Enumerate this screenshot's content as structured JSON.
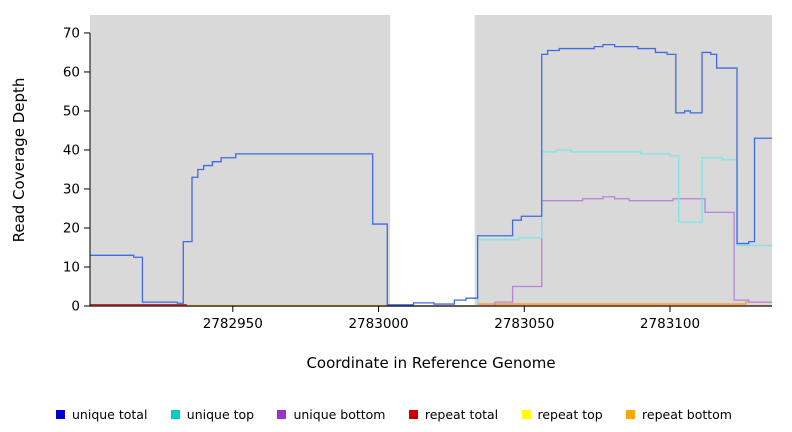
{
  "chart_data": {
    "type": "line",
    "title": "",
    "x_label": "Coordinate in Reference Genome",
    "y_label": "Read Coverage Depth",
    "x_range": [
      2782901,
      2783135
    ],
    "y_range": [
      0,
      74.6
    ],
    "x_ticks": [
      2782950,
      2783000,
      2783050,
      2783100
    ],
    "y_ticks": [
      0,
      10,
      20,
      30,
      40,
      50,
      60,
      70
    ],
    "grid": false,
    "legend_position": "bottom",
    "shaded_regions": [
      {
        "x0": 2782901,
        "x1": 2783004,
        "color": "#D9D9D9"
      },
      {
        "x0": 2783033,
        "x1": 2783135,
        "color": "#D9D9D9"
      }
    ],
    "series": [
      {
        "name": "unique total",
        "line_color": "#4169E1",
        "legend_color": "#0000CC",
        "points": [
          [
            2782901,
            13
          ],
          [
            2782916,
            13
          ],
          [
            2782916,
            12.5
          ],
          [
            2782919,
            12.5
          ],
          [
            2782919,
            1
          ],
          [
            2782931,
            1
          ],
          [
            2782931,
            0.7
          ],
          [
            2782933,
            0.7
          ],
          [
            2782933,
            16.5
          ],
          [
            2782936,
            16.5
          ],
          [
            2782936,
            33
          ],
          [
            2782938,
            33
          ],
          [
            2782938,
            35
          ],
          [
            2782940,
            35
          ],
          [
            2782940,
            36
          ],
          [
            2782943,
            36
          ],
          [
            2782943,
            37
          ],
          [
            2782946,
            37
          ],
          [
            2782946,
            38
          ],
          [
            2782951,
            38
          ],
          [
            2782951,
            39
          ],
          [
            2782998,
            39
          ],
          [
            2782998,
            21
          ],
          [
            2783003,
            21
          ],
          [
            2783003,
            0.3
          ],
          [
            2783012,
            0.3
          ],
          [
            2783012,
            0.8
          ],
          [
            2783019,
            0.8
          ],
          [
            2783019,
            0.5
          ],
          [
            2783026,
            0.5
          ],
          [
            2783026,
            1.5
          ],
          [
            2783030,
            1.5
          ],
          [
            2783030,
            2
          ],
          [
            2783034,
            2
          ],
          [
            2783034,
            18
          ],
          [
            2783046,
            18
          ],
          [
            2783046,
            22
          ],
          [
            2783049,
            22
          ],
          [
            2783049,
            23
          ],
          [
            2783056,
            23
          ],
          [
            2783056,
            64.5
          ],
          [
            2783058,
            64.5
          ],
          [
            2783058,
            65.5
          ],
          [
            2783062,
            65.5
          ],
          [
            2783062,
            66
          ],
          [
            2783074,
            66
          ],
          [
            2783074,
            66.5
          ],
          [
            2783077,
            66.5
          ],
          [
            2783077,
            67
          ],
          [
            2783081,
            67
          ],
          [
            2783081,
            66.5
          ],
          [
            2783089,
            66.5
          ],
          [
            2783089,
            66
          ],
          [
            2783095,
            66
          ],
          [
            2783095,
            65
          ],
          [
            2783099,
            65
          ],
          [
            2783099,
            64.5
          ],
          [
            2783102,
            64.5
          ],
          [
            2783102,
            49.5
          ],
          [
            2783105,
            49.5
          ],
          [
            2783105,
            50
          ],
          [
            2783107,
            50
          ],
          [
            2783107,
            49.5
          ],
          [
            2783111,
            49.5
          ],
          [
            2783111,
            65
          ],
          [
            2783114,
            65
          ],
          [
            2783114,
            64.5
          ],
          [
            2783116,
            64.5
          ],
          [
            2783116,
            61
          ],
          [
            2783123,
            61
          ],
          [
            2783123,
            16
          ],
          [
            2783127,
            16
          ],
          [
            2783127,
            16.5
          ],
          [
            2783129,
            16.5
          ],
          [
            2783129,
            43
          ],
          [
            2783135,
            43
          ]
        ]
      },
      {
        "name": "unique top",
        "line_color": "#7FE6E6",
        "legend_color": "#00CCCC",
        "points": [
          [
            2782901,
            0
          ],
          [
            2783034,
            0
          ],
          [
            2783034,
            17
          ],
          [
            2783048,
            17
          ],
          [
            2783048,
            17.5
          ],
          [
            2783056,
            17.5
          ],
          [
            2783056,
            39.5
          ],
          [
            2783061,
            39.5
          ],
          [
            2783061,
            40
          ],
          [
            2783066,
            40
          ],
          [
            2783066,
            39.5
          ],
          [
            2783090,
            39.5
          ],
          [
            2783090,
            39
          ],
          [
            2783100,
            39
          ],
          [
            2783100,
            38.5
          ],
          [
            2783103,
            38.5
          ],
          [
            2783103,
            21.5
          ],
          [
            2783111,
            21.5
          ],
          [
            2783111,
            38
          ],
          [
            2783118,
            38
          ],
          [
            2783118,
            37.5
          ],
          [
            2783123,
            37.5
          ],
          [
            2783123,
            15.5
          ],
          [
            2783135,
            15.5
          ]
        ]
      },
      {
        "name": "unique bottom",
        "line_color": "#B983DD",
        "legend_color": "#9933CC",
        "points": [
          [
            2782901,
            0
          ],
          [
            2783040,
            0
          ],
          [
            2783040,
            1
          ],
          [
            2783046,
            1
          ],
          [
            2783046,
            5
          ],
          [
            2783056,
            5
          ],
          [
            2783056,
            27
          ],
          [
            2783070,
            27
          ],
          [
            2783070,
            27.5
          ],
          [
            2783077,
            27.5
          ],
          [
            2783077,
            28
          ],
          [
            2783081,
            28
          ],
          [
            2783081,
            27.5
          ],
          [
            2783086,
            27.5
          ],
          [
            2783086,
            27
          ],
          [
            2783101,
            27
          ],
          [
            2783101,
            27.5
          ],
          [
            2783112,
            27.5
          ],
          [
            2783112,
            24
          ],
          [
            2783122,
            24
          ],
          [
            2783122,
            1.5
          ],
          [
            2783127,
            1.5
          ],
          [
            2783127,
            1
          ],
          [
            2783135,
            1
          ]
        ]
      },
      {
        "name": "repeat total",
        "line_color": "#D01010",
        "legend_color": "#CC0000",
        "points": [
          [
            2782901,
            0.3
          ],
          [
            2782934,
            0.3
          ],
          [
            2782934,
            0
          ],
          [
            2783135,
            0
          ]
        ]
      },
      {
        "name": "repeat top",
        "line_color": "#E8E040",
        "legend_color": "#FFFF00",
        "points": [
          [
            2782901,
            0
          ],
          [
            2782934,
            0
          ],
          [
            2782934,
            0.2
          ],
          [
            2783003,
            0.2
          ],
          [
            2783003,
            0
          ],
          [
            2783135,
            0
          ]
        ]
      },
      {
        "name": "repeat bottom",
        "line_color": "#FF9913",
        "legend_color": "#FFA500",
        "points": [
          [
            2782901,
            0
          ],
          [
            2783034,
            0
          ],
          [
            2783034,
            0.5
          ],
          [
            2783126,
            0.5
          ],
          [
            2783126,
            1
          ],
          [
            2783135,
            1
          ]
        ]
      }
    ]
  }
}
